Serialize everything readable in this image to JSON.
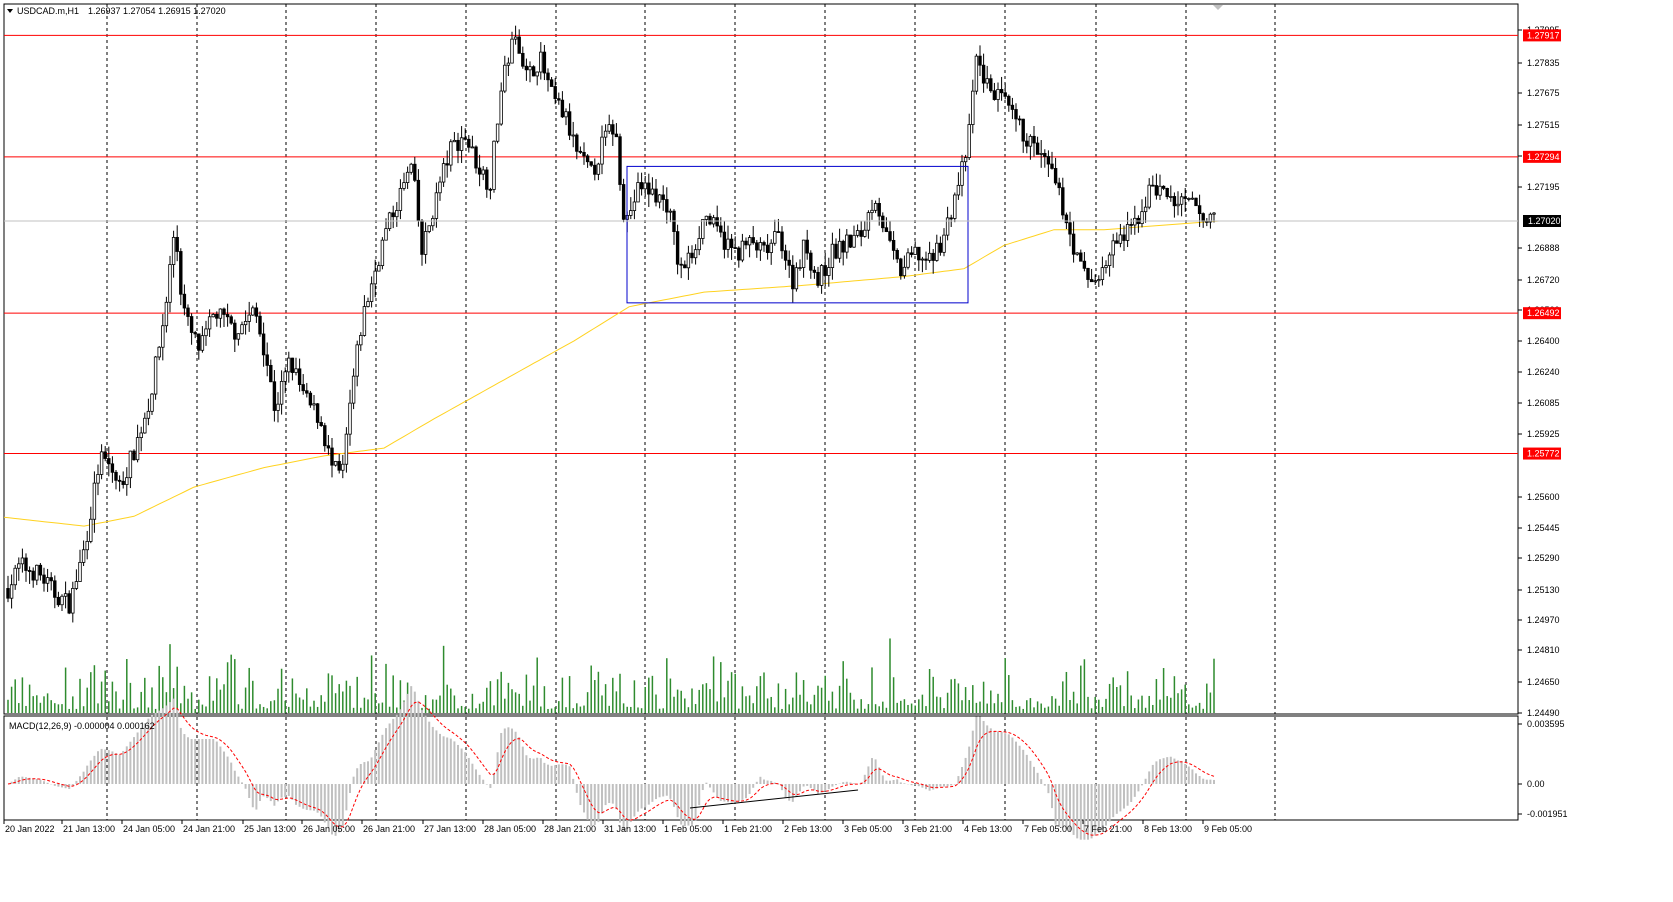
{
  "header": {
    "symbol": "USDCAD.m,H1",
    "ohlc": "1.26937 1.27054 1.26915 1.27020"
  },
  "macd_header": "MACD(12,26,9) -0.000004 0.000162",
  "price_scale": [
    "1.27995",
    "1.27835",
    "1.27675",
    "1.27515",
    "1.27355",
    "1.27195",
    "1.26888",
    "1.26720",
    "1.26560",
    "1.26400",
    "1.26240",
    "1.26085",
    "1.25925",
    "1.25600",
    "1.25445",
    "1.25290",
    "1.25130",
    "1.24970",
    "1.24810",
    "1.24650",
    "1.24490"
  ],
  "current_price": "1.27020",
  "levels": [
    {
      "label": "1.27917",
      "price": 1.27917
    },
    {
      "label": "1.27294",
      "price": 1.27294
    },
    {
      "label": "1.26492",
      "price": 1.26492
    },
    {
      "label": "1.25772",
      "price": 1.25772
    }
  ],
  "macd_scale": [
    "0.003595",
    "0.00",
    "-0.001951"
  ],
  "time_labels": [
    "20 Jan 2022",
    "21 Jan 13:00",
    "24 Jan 05:00",
    "24 Jan 21:00",
    "25 Jan 13:00",
    "26 Jan 05:00",
    "26 Jan 21:00",
    "27 Jan 13:00",
    "28 Jan 05:00",
    "28 Jan 21:00",
    "31 Jan 13:00",
    "1 Feb 05:00",
    "1 Feb 21:00",
    "2 Feb 13:00",
    "3 Feb 05:00",
    "3 Feb 21:00",
    "4 Feb 13:00",
    "7 Feb 05:00",
    "7 Feb 21:00",
    "8 Feb 13:00",
    "9 Feb 05:00"
  ],
  "colors": {
    "level_line": "#ff0000",
    "level_tag": "#ff0000",
    "candle": "#000000",
    "ma_line": "#ffd21f",
    "volume": "#2e8b2e",
    "macd_hist": "#c0c0c0",
    "macd_signal": "#ff0000",
    "box": "#0000cc",
    "grid": "#000000",
    "current_tag": "#000000"
  },
  "chart_data": {
    "type": "candlestick",
    "title": "USDCAD.m,H1",
    "ylim": [
      1.2449,
      1.2808
    ],
    "trend_points": [
      [
        0,
        1.25
      ],
      [
        20,
        1.252
      ],
      [
        40,
        1.2515
      ],
      [
        55,
        1.2505
      ],
      [
        70,
        1.25
      ],
      [
        85,
        1.253
      ],
      [
        100,
        1.2575
      ],
      [
        110,
        1.257
      ],
      [
        120,
        1.256
      ],
      [
        135,
        1.258
      ],
      [
        150,
        1.2605
      ],
      [
        165,
        1.265
      ],
      [
        175,
        1.2695
      ],
      [
        182,
        1.2655
      ],
      [
        190,
        1.264
      ],
      [
        200,
        1.263
      ],
      [
        215,
        1.265
      ],
      [
        235,
        1.264
      ],
      [
        255,
        1.265
      ],
      [
        265,
        1.263
      ],
      [
        275,
        1.26
      ],
      [
        290,
        1.2625
      ],
      [
        305,
        1.2605
      ],
      [
        320,
        1.2595
      ],
      [
        332,
        1.257
      ],
      [
        342,
        1.2565
      ],
      [
        352,
        1.261
      ],
      [
        362,
        1.2645
      ],
      [
        372,
        1.2665
      ],
      [
        385,
        1.269
      ],
      [
        400,
        1.271
      ],
      [
        412,
        1.2725
      ],
      [
        422,
        1.268
      ],
      [
        432,
        1.27
      ],
      [
        442,
        1.272
      ],
      [
        452,
        1.2735
      ],
      [
        465,
        1.274
      ],
      [
        478,
        1.2725
      ],
      [
        490,
        1.2715
      ],
      [
        500,
        1.276
      ],
      [
        510,
        1.2785
      ],
      [
        518,
        1.279
      ],
      [
        527,
        1.277
      ],
      [
        540,
        1.278
      ],
      [
        552,
        1.276
      ],
      [
        565,
        1.275
      ],
      [
        578,
        1.273
      ],
      [
        592,
        1.272
      ],
      [
        605,
        1.274
      ],
      [
        615,
        1.2745
      ],
      [
        625,
        1.2695
      ],
      [
        640,
        1.2715
      ],
      [
        655,
        1.271
      ],
      [
        668,
        1.2705
      ],
      [
        680,
        1.267
      ],
      [
        692,
        1.268
      ],
      [
        705,
        1.27
      ],
      [
        718,
        1.269
      ],
      [
        735,
        1.268
      ],
      [
        750,
        1.2685
      ],
      [
        765,
        1.268
      ],
      [
        780,
        1.269
      ],
      [
        792,
        1.2665
      ],
      [
        805,
        1.2685
      ],
      [
        818,
        1.2665
      ],
      [
        832,
        1.268
      ],
      [
        848,
        1.2685
      ],
      [
        862,
        1.269
      ],
      [
        875,
        1.271
      ],
      [
        888,
        1.2685
      ],
      [
        900,
        1.267
      ],
      [
        915,
        1.268
      ],
      [
        930,
        1.2675
      ],
      [
        945,
        1.269
      ],
      [
        958,
        1.2715
      ],
      [
        968,
        1.2735
      ],
      [
        976,
        1.278
      ],
      [
        988,
        1.2765
      ],
      [
        1000,
        1.276
      ],
      [
        1012,
        1.275
      ],
      [
        1025,
        1.274
      ],
      [
        1040,
        1.273
      ],
      [
        1052,
        1.272
      ],
      [
        1065,
        1.27
      ],
      [
        1078,
        1.2675
      ],
      [
        1090,
        1.2665
      ],
      [
        1102,
        1.267
      ],
      [
        1115,
        1.2685
      ],
      [
        1128,
        1.269
      ],
      [
        1140,
        1.27
      ],
      [
        1152,
        1.2715
      ],
      [
        1165,
        1.271
      ],
      [
        1178,
        1.2705
      ],
      [
        1192,
        1.2705
      ],
      [
        1205,
        1.2695
      ],
      [
        1215,
        1.2702
      ]
    ],
    "ma_points": [
      [
        0,
        1.25445
      ],
      [
        80,
        1.254
      ],
      [
        130,
        1.2545
      ],
      [
        190,
        1.256
      ],
      [
        260,
        1.257
      ],
      [
        320,
        1.2576
      ],
      [
        380,
        1.258
      ],
      [
        430,
        1.2595
      ],
      [
        500,
        1.2615
      ],
      [
        570,
        1.2635
      ],
      [
        625,
        1.26525
      ],
      [
        700,
        1.266
      ],
      [
        800,
        1.26635
      ],
      [
        900,
        1.2668
      ],
      [
        960,
        1.2672
      ],
      [
        1000,
        1.2684
      ],
      [
        1050,
        1.2692
      ],
      [
        1100,
        1.2692
      ],
      [
        1150,
        1.2694
      ],
      [
        1215,
        1.26965
      ]
    ],
    "box": {
      "x_start": 627,
      "x_end": 968,
      "price_top": 1.27245,
      "price_bottom": 1.26545
    }
  }
}
